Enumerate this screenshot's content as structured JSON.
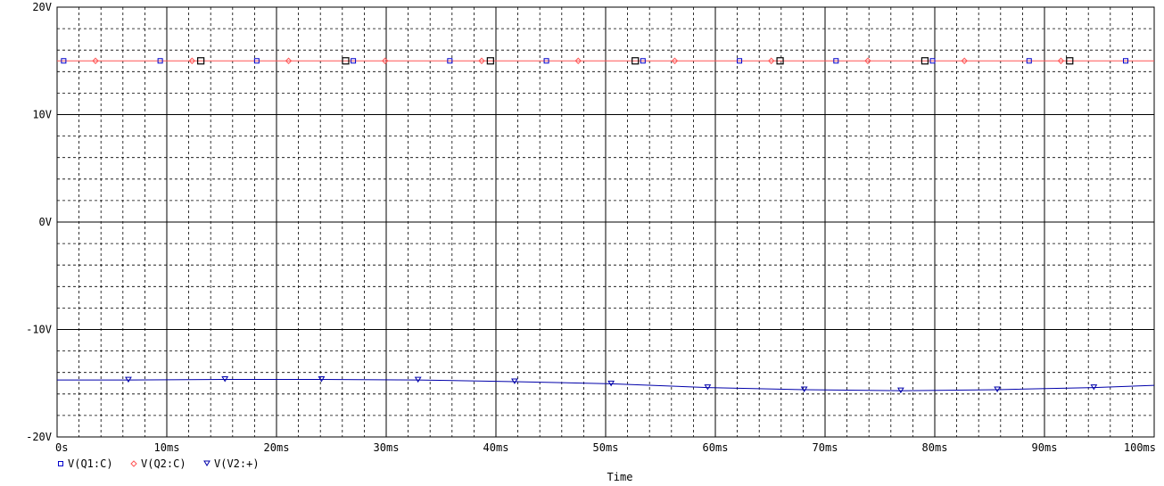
{
  "chart_data": {
    "type": "line",
    "title": "",
    "xlabel": "Time",
    "ylabel": "",
    "xlim": [
      0,
      100
    ],
    "ylim": [
      -20,
      20
    ],
    "grid": true,
    "legend_position": "bottom-left",
    "x_ticks": [
      {
        "value": 0,
        "label": "0s"
      },
      {
        "value": 10,
        "label": "10ms"
      },
      {
        "value": 20,
        "label": "20ms"
      },
      {
        "value": 30,
        "label": "30ms"
      },
      {
        "value": 40,
        "label": "40ms"
      },
      {
        "value": 50,
        "label": "50ms"
      },
      {
        "value": 60,
        "label": "60ms"
      },
      {
        "value": 70,
        "label": "70ms"
      },
      {
        "value": 80,
        "label": "80ms"
      },
      {
        "value": 90,
        "label": "90ms"
      },
      {
        "value": 100,
        "label": "100ms"
      }
    ],
    "y_ticks": [
      {
        "value": 20,
        "label": "20V"
      },
      {
        "value": 10,
        "label": "10V"
      },
      {
        "value": 0,
        "label": "0V"
      },
      {
        "value": -10,
        "label": "-10V"
      },
      {
        "value": -20,
        "label": "-20V"
      }
    ],
    "series": [
      {
        "name": "V(Q1:C)",
        "color": "#0000cc",
        "marker": "square",
        "x": [
          0.6,
          9.4,
          18.2,
          27.0,
          35.8,
          44.6,
          53.4,
          62.2,
          71.0,
          79.8,
          88.6,
          97.4
        ],
        "values": [
          15.0,
          15.0,
          15.0,
          15.0,
          15.0,
          15.0,
          15.0,
          15.0,
          15.0,
          15.0,
          15.0,
          15.0
        ]
      },
      {
        "name": "V(Q2:C)",
        "color": "#ff5555",
        "marker": "diamond",
        "x": [
          3.5,
          12.3,
          21.1,
          29.9,
          38.7,
          47.5,
          56.3,
          65.1,
          73.9,
          82.7,
          91.5
        ],
        "values": [
          15.0,
          15.0,
          15.0,
          15.0,
          15.0,
          15.0,
          15.0,
          15.0,
          15.0,
          15.0,
          15.0
        ]
      },
      {
        "name": "V(V2:+)",
        "color": "#0000aa",
        "marker": "triangle-down",
        "x": [
          0,
          6.5,
          15.3,
          24.1,
          32.9,
          41.7,
          50.5,
          59.3,
          68.1,
          76.9,
          85.7,
          94.5,
          100
        ],
        "values": [
          -14.7,
          -14.7,
          -14.65,
          -14.65,
          -14.7,
          -14.85,
          -15.05,
          -15.4,
          -15.6,
          -15.7,
          -15.6,
          -15.4,
          -15.2
        ]
      }
    ],
    "cursor_markers": {
      "color": "#000000",
      "marker": "big-square",
      "x": [
        13.1,
        26.3,
        39.5,
        52.7,
        65.9,
        79.1,
        92.3
      ],
      "values": [
        15.0,
        15.0,
        15.0,
        15.0,
        15.0,
        15.0,
        15.0
      ]
    }
  }
}
